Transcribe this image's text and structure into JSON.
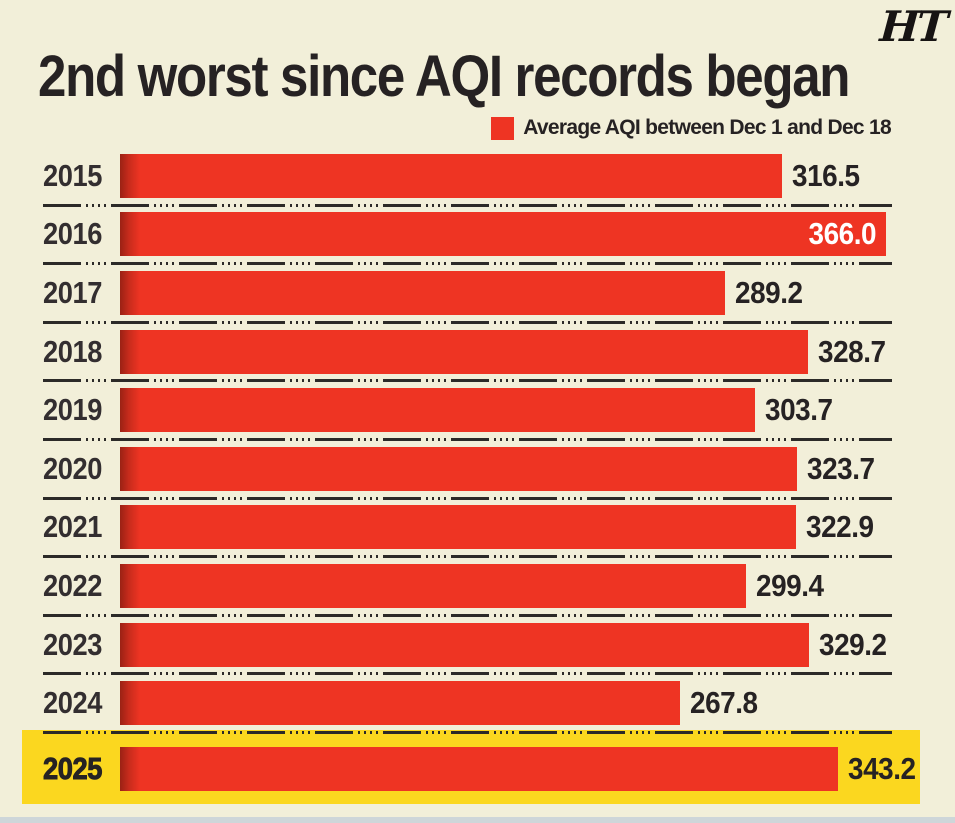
{
  "header": {
    "title": "2nd worst since AQI records began",
    "logo_text": "HT"
  },
  "legend": {
    "label": "Average AQI between Dec 1 and Dec 18",
    "swatch_color": "#ee3423"
  },
  "chart_data": {
    "type": "bar",
    "orientation": "horizontal",
    "title": "2nd worst since AQI records began",
    "legend": [
      "Average AQI between Dec 1 and Dec 18"
    ],
    "legend_position": "top-right",
    "categories": [
      "2015",
      "2016",
      "2017",
      "2018",
      "2019",
      "2020",
      "2021",
      "2022",
      "2023",
      "2024",
      "2025"
    ],
    "values": [
      316.5,
      366.0,
      289.2,
      328.7,
      303.7,
      323.7,
      322.9,
      299.4,
      329.2,
      267.8,
      343.2
    ],
    "value_labels": [
      "316.5",
      "366.0",
      "289.2",
      "328.7",
      "303.7",
      "323.7",
      "322.9",
      "299.4",
      "329.2",
      "267.8",
      "343.2"
    ],
    "xlim": [
      0,
      369
    ],
    "grid": false,
    "bar_color": "#ee3423",
    "highlight": {
      "category": "2025",
      "band_color": "#fbd71f"
    },
    "value_inside_bar": {
      "category": "2016",
      "text_color": "#ffffff"
    }
  },
  "colors": {
    "background": "#f2efd9",
    "bar": "#ee3423",
    "highlight_band": "#fbd71f",
    "text": "#262223",
    "separator": "#2c2a28",
    "bottom_strip": "#ced6d9"
  }
}
